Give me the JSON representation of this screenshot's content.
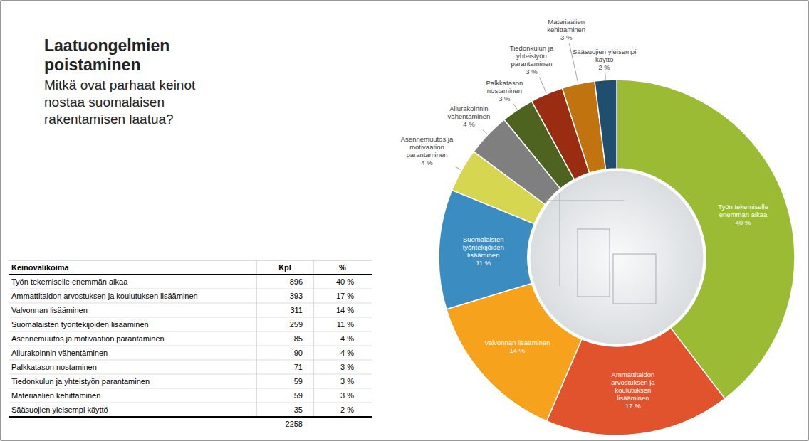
{
  "chart_data": {
    "type": "pie",
    "title": "Laatuongelmien poistaminen",
    "subtitle": "Mitkä ovat parhaat keinot nostaa suomalaisen rakentamisen laatua?",
    "categories": [
      "Työn tekemiselle enemmän aikaa",
      "Ammattitaidon arvostuksen ja koulutuksen lisääminen",
      "Valvonnan lisääminen",
      "Suomalaisten työntekijöiden lisääminen",
      "Asennemuutos ja motivaation parantaminen",
      "Aliurakoinnin vähentäminen",
      "Palkkatason nostaminen",
      "Tiedonkulun ja yhteistyön parantaminen",
      "Materiaalien kehittäminen",
      "Sääsuojien yleisempi käyttö"
    ],
    "values": [
      40,
      17,
      14,
      11,
      4,
      4,
      3,
      3,
      3,
      2
    ],
    "value_labels": [
      "40 %",
      "17 %",
      "14 %",
      "11 %",
      "4 %",
      "4 %",
      "3 %",
      "3 %",
      "3 %",
      "2 %"
    ],
    "colors": [
      "#9bbb35",
      "#e0532c",
      "#f6a21c",
      "#3a8cc1",
      "#d6d650",
      "#7f7f7f",
      "#4f6320",
      "#9a2c12",
      "#c1730f",
      "#1f4e6e"
    ],
    "data_labels": true
  },
  "table": {
    "columns": [
      "Keinovalikoima",
      "Kpl",
      "%"
    ],
    "rows": [
      [
        "Työn tekemiselle enemmän aikaa",
        896,
        "40 %"
      ],
      [
        "Ammattitaidon arvostuksen ja koulutuksen lisääminen",
        393,
        "17 %"
      ],
      [
        "Valvonnan lisääminen",
        311,
        "14 %"
      ],
      [
        "Suomalaisten työntekijöiden lisääminen",
        259,
        "11 %"
      ],
      [
        "Asennemuutos ja motivaation parantaminen",
        85,
        "4 %"
      ],
      [
        "Aliurakoinnin vähentäminen",
        90,
        "4 %"
      ],
      [
        "Palkkatason nostaminen",
        71,
        "3 %"
      ],
      [
        "Tiedonkulun ja yhteistyön parantaminen",
        59,
        "3 %"
      ],
      [
        "Materiaalien kehittäminen",
        59,
        "3 %"
      ],
      [
        "Sääsuojien yleisempi käyttö",
        35,
        "2 %"
      ]
    ],
    "total": 2258
  }
}
